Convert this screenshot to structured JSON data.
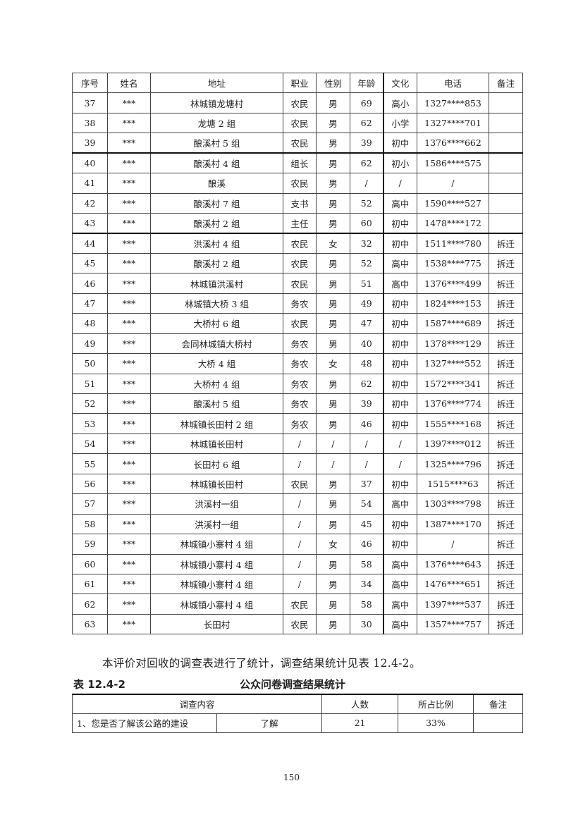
{
  "residents_table": {
    "headers": [
      "序号",
      "姓名",
      "地址",
      "职业",
      "性别",
      "年龄",
      "文化",
      "电话",
      "备注"
    ],
    "rows": [
      [
        "37",
        "***",
        "林城镇龙塘村",
        "农民",
        "男",
        "69",
        "高小",
        "1327****853",
        ""
      ],
      [
        "38",
        "***",
        "龙塘 2 组",
        "农民",
        "男",
        "62",
        "小学",
        "1327****701",
        ""
      ],
      [
        "39",
        "***",
        "酿溪村 5 组",
        "农民",
        "男",
        "39",
        "初中",
        "1376****662",
        ""
      ],
      [
        "40",
        "***",
        "酿溪村 4 组",
        "组长",
        "男",
        "62",
        "初小",
        "1586****575",
        ""
      ],
      [
        "41",
        "***",
        "酿溪",
        "农民",
        "男",
        "/",
        "/",
        "/",
        ""
      ],
      [
        "42",
        "***",
        "酿溪村 7 组",
        "支书",
        "男",
        "52",
        "高中",
        "1590****527",
        ""
      ],
      [
        "43",
        "***",
        "酿溪村 2 组",
        "主任",
        "男",
        "60",
        "初中",
        "1478****172",
        ""
      ],
      [
        "44",
        "***",
        "洪溪村 4 组",
        "农民",
        "女",
        "32",
        "初中",
        "1511****780",
        "拆迁"
      ],
      [
        "45",
        "***",
        "酿溪村 2 组",
        "农民",
        "男",
        "52",
        "高中",
        "1538****775",
        "拆迁"
      ],
      [
        "46",
        "***",
        "林城镇洪溪村",
        "农民",
        "男",
        "51",
        "高中",
        "1376****499",
        "拆迁"
      ],
      [
        "47",
        "***",
        "林城镇大桥 3 组",
        "务农",
        "男",
        "49",
        "初中",
        "1824****153",
        "拆迁"
      ],
      [
        "48",
        "***",
        "大桥村 6 组",
        "农民",
        "男",
        "47",
        "初中",
        "1587****689",
        "拆迁"
      ],
      [
        "49",
        "***",
        "会同林城镇大桥村",
        "务农",
        "男",
        "40",
        "初中",
        "1378****129",
        "拆迁"
      ],
      [
        "50",
        "***",
        "大桥 4 组",
        "务农",
        "女",
        "48",
        "初中",
        "1327****552",
        "拆迁"
      ],
      [
        "51",
        "***",
        "大桥村 4 组",
        "务农",
        "男",
        "62",
        "初中",
        "1572****341",
        "拆迁"
      ],
      [
        "52",
        "***",
        "酿溪村 5 组",
        "务农",
        "男",
        "39",
        "初中",
        "1376****774",
        "拆迁"
      ],
      [
        "53",
        "***",
        "林城镇长田村 2 组",
        "务农",
        "男",
        "46",
        "初中",
        "1555****168",
        "拆迁"
      ],
      [
        "54",
        "***",
        "林城镇长田村",
        "/",
        "/",
        "/",
        "/",
        "1397****012",
        "拆迁"
      ],
      [
        "55",
        "***",
        "长田村 6 组",
        "/",
        "/",
        "/",
        "/",
        "1325****796",
        "拆迁"
      ],
      [
        "56",
        "***",
        "林城镇长田村",
        "农民",
        "男",
        "37",
        "初中",
        "1515****63",
        "拆迁"
      ],
      [
        "57",
        "***",
        "洪溪村一组",
        "/",
        "男",
        "54",
        "高中",
        "1303****798",
        "拆迁"
      ],
      [
        "58",
        "***",
        "洪溪村一组",
        "/",
        "男",
        "45",
        "初中",
        "1387****170",
        "拆迁"
      ],
      [
        "59",
        "***",
        "林城镇小寨村 4 组",
        "/",
        "女",
        "46",
        "初中",
        "/",
        "拆迁"
      ],
      [
        "60",
        "***",
        "林城镇小寨村 4 组",
        "/",
        "男",
        "58",
        "高中",
        "1376****643",
        "拆迁"
      ],
      [
        "61",
        "***",
        "林城镇小寨村 4 组",
        "/",
        "男",
        "34",
        "高中",
        "1476****651",
        "拆迁"
      ],
      [
        "62",
        "***",
        "林城镇小寨村 4 组",
        "农民",
        "男",
        "58",
        "高中",
        "1397****537",
        "拆迁"
      ],
      [
        "63",
        "***",
        "长田村",
        "农民",
        "男",
        "30",
        "高中",
        "1357****757",
        "拆迁"
      ]
    ]
  },
  "paragraph": "本评价对回收的调查表进行了统计，调查结果统计见表 12.4-2。",
  "survey_table": {
    "caption_number": "表 12.4-2",
    "caption_title": "公众问卷调查结果统计",
    "headers": [
      "调查内容",
      "人数",
      "所占比例",
      "备注"
    ],
    "rows": [
      {
        "question": "1、您是否了解该公路的建设",
        "option": "了解",
        "count": "21",
        "percent": "33%",
        "note": ""
      }
    ]
  },
  "page_number": "150"
}
